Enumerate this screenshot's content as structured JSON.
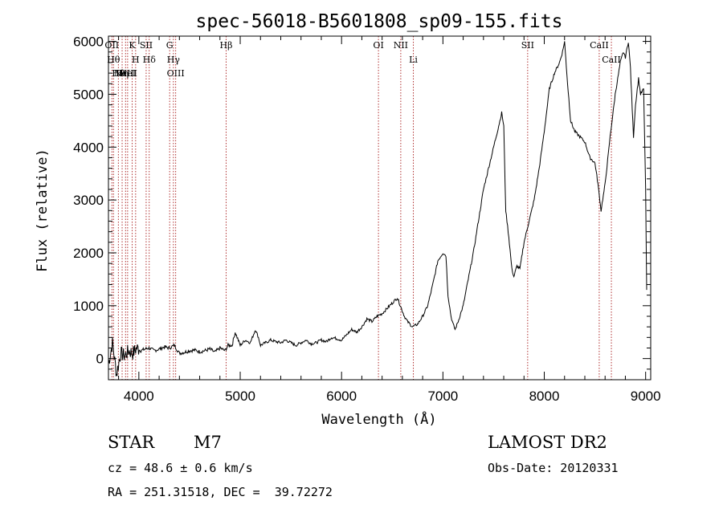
{
  "chart_data": {
    "type": "line",
    "title": "spec-56018-B5601808_sp09-155.fits",
    "xlabel": "Wavelength (Å)",
    "ylabel": "Flux (relative)",
    "xlim": [
      3700,
      9050
    ],
    "ylim": [
      -400,
      6100
    ],
    "xticks": [
      4000,
      5000,
      6000,
      7000,
      8000,
      9000
    ],
    "yticks": [
      0,
      1000,
      2000,
      3000,
      4000,
      5000,
      6000
    ],
    "grid": false,
    "series": [
      {
        "x": [
          3700,
          3740,
          3780,
          3820,
          3860,
          3900,
          3940,
          3980,
          4020,
          4060,
          4100,
          4150,
          4200,
          4250,
          4300,
          4350,
          4400,
          4450,
          4500,
          4550,
          4600,
          4650,
          4700,
          4750,
          4800,
          4850,
          4880,
          4920,
          4950,
          5000,
          5050,
          5100,
          5150,
          5180,
          5200,
          5250,
          5300,
          5350,
          5400,
          5450,
          5500,
          5550,
          5600,
          5650,
          5700,
          5750,
          5800,
          5850,
          5900,
          5950,
          6000,
          6050,
          6100,
          6150,
          6200,
          6250,
          6300,
          6350,
          6400,
          6450,
          6500,
          6550,
          6580,
          6620,
          6650,
          6700,
          6750,
          6800,
          6850,
          6900,
          6950,
          7000,
          7030,
          7050,
          7080,
          7100,
          7120,
          7150,
          7200,
          7250,
          7300,
          7350,
          7400,
          7450,
          7500,
          7550,
          7580,
          7600,
          7620,
          7650,
          7680,
          7700,
          7730,
          7760,
          7800,
          7850,
          7900,
          7950,
          8000,
          8050,
          8100,
          8150,
          8180,
          8200,
          8230,
          8260,
          8300,
          8350,
          8400,
          8450,
          8500,
          8530,
          8560,
          8600,
          8650,
          8700,
          8750,
          8780,
          8800,
          8830,
          8850,
          8880,
          8900,
          8930,
          8950,
          8980,
          9000,
          9010
        ],
        "y": [
          -100,
          300,
          -300,
          100,
          50,
          150,
          100,
          200,
          150,
          180,
          200,
          150,
          180,
          220,
          200,
          250,
          100,
          120,
          150,
          160,
          130,
          150,
          180,
          120,
          200,
          150,
          250,
          250,
          500,
          250,
          350,
          300,
          550,
          400,
          250,
          300,
          350,
          320,
          300,
          350,
          300,
          250,
          300,
          350,
          280,
          300,
          350,
          320,
          400,
          380,
          350,
          450,
          550,
          500,
          600,
          750,
          700,
          800,
          850,
          950,
          1050,
          1150,
          1000,
          800,
          700,
          600,
          650,
          800,
          1000,
          1400,
          1850,
          2000,
          1950,
          1200,
          800,
          650,
          550,
          700,
          1000,
          1500,
          2000,
          2600,
          3200,
          3600,
          4000,
          4400,
          4650,
          4400,
          2800,
          2300,
          1700,
          1550,
          1750,
          1700,
          2200,
          2600,
          3000,
          3600,
          4300,
          5100,
          5400,
          5600,
          5800,
          6000,
          5200,
          4500,
          4300,
          4200,
          4100,
          3800,
          3700,
          3300,
          2800,
          3300,
          4200,
          5000,
          5600,
          5800,
          5700,
          6000,
          5500,
          4200,
          4800,
          5300,
          5000,
          5100,
          3200,
          1300
        ]
      }
    ],
    "lines": [
      {
        "x": 3734,
        "label": "OII"
      },
      {
        "x": 3750,
        "label": "Hθ"
      },
      {
        "x": 3798,
        "label": "Hθ"
      },
      {
        "x": 3835,
        "label": "Hη"
      },
      {
        "x": 3869,
        "label": "NeIII"
      },
      {
        "x": 3889,
        "label": "HeI"
      },
      {
        "x": 3934,
        "label": "K"
      },
      {
        "x": 3968,
        "label": "H"
      },
      {
        "x": 4072,
        "label": "SII"
      },
      {
        "x": 4102,
        "label": "Hδ"
      },
      {
        "x": 4304,
        "label": "G"
      },
      {
        "x": 4341,
        "label": "Hγ"
      },
      {
        "x": 4363,
        "label": "OIII"
      },
      {
        "x": 4861,
        "label": "Hβ"
      },
      {
        "x": 6364,
        "label": "OI"
      },
      {
        "x": 6584,
        "label": "NII"
      },
      {
        "x": 6708,
        "label": "Li"
      },
      {
        "x": 7836,
        "label": "SII"
      },
      {
        "x": 8542,
        "label": "CaII"
      },
      {
        "x": 8662,
        "label": "CaII"
      }
    ]
  },
  "info": {
    "object_type": "STAR",
    "subclass": "M7",
    "survey": "LAMOST DR2",
    "cz": "cz = 48.6 ± 0.6 km/s",
    "obs_date": "Obs-Date: 20120331",
    "coords": "RA = 251.31518, DEC =  39.72272"
  }
}
